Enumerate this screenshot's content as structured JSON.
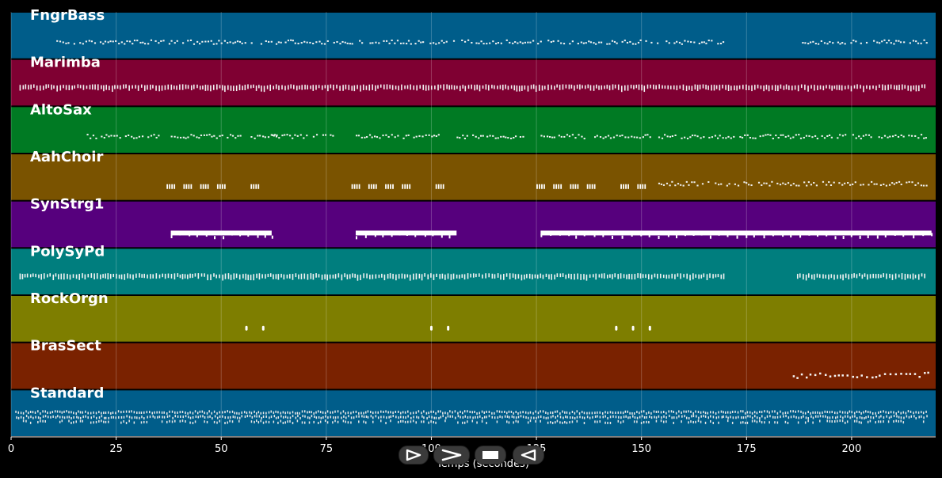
{
  "chart_data": {
    "type": "piano-roll",
    "xlabel": "Temps (secondes)",
    "xlim": [
      0,
      220
    ],
    "xticks": [
      0,
      25,
      50,
      75,
      100,
      125,
      150,
      175,
      200
    ],
    "grid": true,
    "tracks": [
      {
        "name": "FngrBass",
        "color": "#005d8a",
        "segments": [
          [
            10,
            170
          ],
          [
            187,
            218
          ]
        ],
        "style": "sparse"
      },
      {
        "name": "Marimba",
        "color": "#7f0032",
        "segments": [
          [
            2,
            218
          ]
        ],
        "style": "dense"
      },
      {
        "name": "AltoSax",
        "color": "#007a23",
        "segments": [
          [
            18,
            35
          ],
          [
            38,
            55
          ],
          [
            57,
            63
          ],
          [
            62,
            77
          ],
          [
            82,
            102
          ],
          [
            106,
            122
          ],
          [
            126,
            152
          ],
          [
            154,
            218
          ]
        ],
        "style": "sparse"
      },
      {
        "name": "AahChoir",
        "color": "#7a5300",
        "segments": [
          [
            154,
            218
          ]
        ],
        "style": "sparse",
        "blocks": [
          38.5,
          42.5,
          46.5,
          50.5,
          58.5,
          82.5,
          86.5,
          90.5,
          94.5,
          102.5,
          126.5,
          130.5,
          134.5,
          138.5,
          146.5,
          150.5
        ]
      },
      {
        "name": "SynStrg1",
        "color": "#56007d",
        "bars": [
          [
            38,
            62
          ],
          [
            82,
            106
          ],
          [
            126,
            219
          ]
        ]
      },
      {
        "name": "PolySyPd",
        "color": "#007e7e",
        "segments": [
          [
            2,
            170
          ],
          [
            187,
            218
          ]
        ],
        "style": "dense"
      },
      {
        "name": "RockOrgn",
        "color": "#7e7e00",
        "dots": [
          56,
          60,
          100,
          104,
          144,
          148,
          152
        ]
      },
      {
        "name": "BrasSect",
        "color": "#7a2200",
        "segments": [
          [
            186,
            218
          ]
        ],
        "style": "bras"
      },
      {
        "name": "Standard",
        "color": "#005d8a",
        "segments": [
          [
            1,
            218
          ]
        ],
        "style": "drums"
      }
    ]
  },
  "controls": [
    {
      "name": "play",
      "icon": "play-icon"
    },
    {
      "name": "forward",
      "icon": "forward-icon"
    },
    {
      "name": "stop",
      "icon": "stop-icon"
    },
    {
      "name": "rewind",
      "icon": "rewind-icon"
    }
  ]
}
